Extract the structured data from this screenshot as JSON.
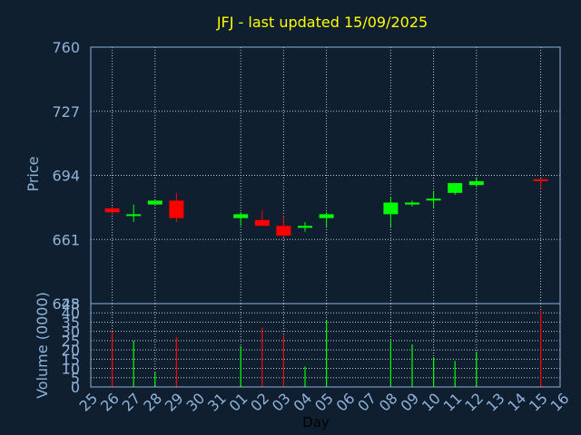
{
  "title": "JFJ - last updated 15/09/2025",
  "chart_data": [
    {
      "type": "candlestick",
      "ylabel": "Price",
      "ylim": [
        628,
        760
      ],
      "y_ticks": [
        "760",
        "727",
        "694",
        "661",
        "628"
      ],
      "colors": {
        "up": "#00ff00",
        "down": "#ff0000"
      },
      "candles": [
        {
          "day": "26",
          "open": 677,
          "high": 678,
          "low": 674,
          "close": 675
        },
        {
          "day": "27",
          "open": 674,
          "high": 679,
          "low": 670,
          "close": 674
        },
        {
          "day": "28",
          "open": 679,
          "high": 681,
          "low": 679,
          "close": 681
        },
        {
          "day": "29",
          "open": 681,
          "high": 685,
          "low": 670,
          "close": 672
        },
        {
          "day": "01",
          "open": 672,
          "high": 675,
          "low": 668,
          "close": 674
        },
        {
          "day": "02",
          "open": 671,
          "high": 676,
          "low": 668,
          "close": 668
        },
        {
          "day": "03",
          "open": 668,
          "high": 673,
          "low": 662,
          "close": 663
        },
        {
          "day": "04",
          "open": 667,
          "high": 670,
          "low": 665,
          "close": 668
        },
        {
          "day": "05",
          "open": 672,
          "high": 675,
          "low": 667,
          "close": 674
        },
        {
          "day": "08",
          "open": 674,
          "high": 683,
          "low": 667,
          "close": 680
        },
        {
          "day": "09",
          "open": 679,
          "high": 681,
          "low": 678,
          "close": 680
        },
        {
          "day": "10",
          "open": 682,
          "high": 686,
          "low": 677,
          "close": 682
        },
        {
          "day": "11",
          "open": 685,
          "high": 690,
          "low": 684,
          "close": 690
        },
        {
          "day": "12",
          "open": 689,
          "high": 693,
          "low": 688,
          "close": 691
        },
        {
          "day": "15",
          "open": 692,
          "high": 692,
          "low": 687,
          "close": 691
        }
      ]
    },
    {
      "type": "bar",
      "ylabel": "Volume (0000)",
      "ylim": [
        0,
        45
      ],
      "y_ticks": [
        "45",
        "40",
        "35",
        "30",
        "25",
        "20",
        "15",
        "10",
        "5",
        "0"
      ],
      "xlabel": "Day",
      "x_ticks": [
        "25",
        "26",
        "27",
        "28",
        "29",
        "30",
        "31",
        "01",
        "02",
        "03",
        "04",
        "05",
        "06",
        "07",
        "08",
        "09",
        "10",
        "11",
        "12",
        "13",
        "14",
        "15",
        "16"
      ],
      "volumes": [
        {
          "day": "26",
          "value": 30,
          "color": "#ff0000"
        },
        {
          "day": "27",
          "value": 25,
          "color": "#00ff00"
        },
        {
          "day": "28",
          "value": 8,
          "color": "#00ff00"
        },
        {
          "day": "29",
          "value": 27,
          "color": "#ff0000"
        },
        {
          "day": "01",
          "value": 22,
          "color": "#00ff00"
        },
        {
          "day": "02",
          "value": 32,
          "color": "#ff0000"
        },
        {
          "day": "03",
          "value": 28,
          "color": "#ff0000"
        },
        {
          "day": "04",
          "value": 11,
          "color": "#00ff00"
        },
        {
          "day": "05",
          "value": 36,
          "color": "#00ff00"
        },
        {
          "day": "08",
          "value": 25,
          "color": "#00ff00"
        },
        {
          "day": "09",
          "value": 23,
          "color": "#00ff00"
        },
        {
          "day": "10",
          "value": 16,
          "color": "#00ff00"
        },
        {
          "day": "11",
          "value": 14,
          "color": "#00ff00"
        },
        {
          "day": "12",
          "value": 19,
          "color": "#00ff00"
        },
        {
          "day": "15",
          "value": 41,
          "color": "#ff0000"
        }
      ]
    }
  ]
}
